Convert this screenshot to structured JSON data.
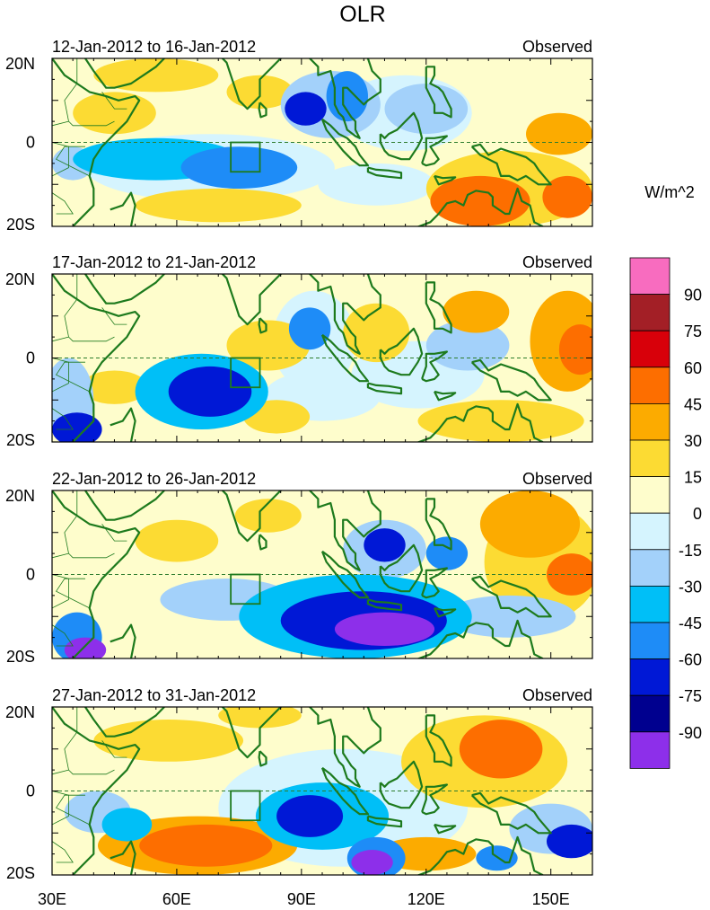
{
  "chart_data": {
    "type": "heatmap",
    "title": "OLR",
    "units": "W/m^2",
    "xlim": [
      30,
      160
    ],
    "ylim": [
      -20,
      20
    ],
    "x_ticks": [
      {
        "value": 30,
        "label": "30E"
      },
      {
        "value": 60,
        "label": "60E"
      },
      {
        "value": 90,
        "label": "90E"
      },
      {
        "value": 120,
        "label": "120E"
      },
      {
        "value": 150,
        "label": "150E"
      }
    ],
    "y_ticks": [
      {
        "value": 20,
        "label": "20N"
      },
      {
        "value": 0,
        "label": "0"
      },
      {
        "value": -20,
        "label": "20S"
      }
    ],
    "region_box": {
      "lon": [
        73,
        80
      ],
      "lat": [
        -7,
        0
      ]
    },
    "colorbar": {
      "labels": [
        "90",
        "75",
        "60",
        "45",
        "30",
        "15",
        "0",
        "-15",
        "-30",
        "-45",
        "-60",
        "-75",
        "-90"
      ],
      "colors": [
        "#f86cbf",
        "#a31f26",
        "#d8000a",
        "#fd6e00",
        "#fcab00",
        "#fcdb33",
        "#fefdcc",
        "#d5f4fe",
        "#a3d1fa",
        "#00bff7",
        "#1e8cf7",
        "#0018d6",
        "#00008f",
        "#8d2fea"
      ]
    },
    "panels": [
      {
        "period": "12-Jan-2012 to 16-Jan-2012",
        "label": "Observed",
        "anomalies": [
          {
            "lon": 91,
            "lat": 8,
            "rx": 5,
            "ry": 4,
            "value": -75
          },
          {
            "lon": 101,
            "lat": 11,
            "rx": 5,
            "ry": 6,
            "value": -60
          },
          {
            "lon": 97,
            "lat": 9,
            "rx": 12,
            "ry": 8,
            "value": -30
          },
          {
            "lon": 55,
            "lat": -4,
            "rx": 20,
            "ry": 5,
            "value": -45
          },
          {
            "lon": 75,
            "lat": -6,
            "rx": 14,
            "ry": 5,
            "value": -60
          },
          {
            "lon": 68,
            "lat": -6,
            "rx": 30,
            "ry": 8,
            "value": -15
          },
          {
            "lon": 35,
            "lat": -5,
            "rx": 5,
            "ry": 4,
            "value": -30
          },
          {
            "lon": 120,
            "lat": 8,
            "rx": 10,
            "ry": 6,
            "value": -30
          },
          {
            "lon": 115,
            "lat": 7,
            "rx": 16,
            "ry": 9,
            "value": -15
          },
          {
            "lon": 108,
            "lat": -10,
            "rx": 14,
            "ry": 5,
            "value": -15
          },
          {
            "lon": 133,
            "lat": -14,
            "rx": 12,
            "ry": 6,
            "value": 45
          },
          {
            "lon": 154,
            "lat": -13,
            "rx": 6,
            "ry": 5,
            "value": 45
          },
          {
            "lon": 140,
            "lat": -11,
            "rx": 20,
            "ry": 9,
            "value": 15
          },
          {
            "lon": 152,
            "lat": 2,
            "rx": 8,
            "ry": 5,
            "value": 30
          },
          {
            "lon": 45,
            "lat": 7,
            "rx": 10,
            "ry": 5,
            "value": 15
          },
          {
            "lon": 80,
            "lat": 12,
            "rx": 8,
            "ry": 4,
            "value": 15
          },
          {
            "lon": 55,
            "lat": 16,
            "rx": 15,
            "ry": 4,
            "value": 15
          },
          {
            "lon": 70,
            "lat": -15,
            "rx": 20,
            "ry": 4,
            "value": 15
          }
        ]
      },
      {
        "period": "17-Jan-2012 to 21-Jan-2012",
        "label": "Observed",
        "anomalies": [
          {
            "lon": 68,
            "lat": -8,
            "rx": 10,
            "ry": 6,
            "value": -75
          },
          {
            "lon": 66,
            "lat": -8,
            "rx": 16,
            "ry": 9,
            "value": -45
          },
          {
            "lon": 36,
            "lat": -17,
            "rx": 6,
            "ry": 4,
            "value": -75
          },
          {
            "lon": 34,
            "lat": -10,
            "rx": 6,
            "ry": 10,
            "value": -30
          },
          {
            "lon": 92,
            "lat": 7,
            "rx": 5,
            "ry": 5,
            "value": -60
          },
          {
            "lon": 93,
            "lat": 4,
            "rx": 10,
            "ry": 12,
            "value": -15
          },
          {
            "lon": 130,
            "lat": 3,
            "rx": 10,
            "ry": 6,
            "value": -30
          },
          {
            "lon": 118,
            "lat": -4,
            "rx": 16,
            "ry": 8,
            "value": -15
          },
          {
            "lon": 95,
            "lat": -9,
            "rx": 14,
            "ry": 6,
            "value": -15
          },
          {
            "lon": 157,
            "lat": 2,
            "rx": 5,
            "ry": 6,
            "value": 45
          },
          {
            "lon": 154,
            "lat": 4,
            "rx": 9,
            "ry": 12,
            "value": 30
          },
          {
            "lon": 82,
            "lat": 3,
            "rx": 10,
            "ry": 6,
            "value": 15
          },
          {
            "lon": 108,
            "lat": 6,
            "rx": 8,
            "ry": 7,
            "value": 15
          },
          {
            "lon": 132,
            "lat": 11,
            "rx": 8,
            "ry": 5,
            "value": 30
          },
          {
            "lon": 138,
            "lat": -15,
            "rx": 20,
            "ry": 5,
            "value": 15
          },
          {
            "lon": 45,
            "lat": -7,
            "rx": 8,
            "ry": 4,
            "value": 15
          },
          {
            "lon": 84,
            "lat": -14,
            "rx": 8,
            "ry": 4,
            "value": 15
          }
        ]
      },
      {
        "period": "22-Jan-2012 to 26-Jan-2012",
        "label": "Observed",
        "anomalies": [
          {
            "lon": 110,
            "lat": -13,
            "rx": 12,
            "ry": 4,
            "value": -90
          },
          {
            "lon": 105,
            "lat": -11,
            "rx": 20,
            "ry": 7,
            "value": -75
          },
          {
            "lon": 103,
            "lat": -10,
            "rx": 28,
            "ry": 10,
            "value": -45
          },
          {
            "lon": 38,
            "lat": -18,
            "rx": 5,
            "ry": 3,
            "value": -90
          },
          {
            "lon": 36,
            "lat": -15,
            "rx": 6,
            "ry": 6,
            "value": -60
          },
          {
            "lon": 72,
            "lat": -6,
            "rx": 16,
            "ry": 5,
            "value": -30
          },
          {
            "lon": 110,
            "lat": 7,
            "rx": 5,
            "ry": 4,
            "value": -75
          },
          {
            "lon": 110,
            "lat": 6,
            "rx": 10,
            "ry": 7,
            "value": -30
          },
          {
            "lon": 125,
            "lat": 5,
            "rx": 5,
            "ry": 4,
            "value": -60
          },
          {
            "lon": 140,
            "lat": -10,
            "rx": 16,
            "ry": 5,
            "value": -30
          },
          {
            "lon": 145,
            "lat": 12,
            "rx": 12,
            "ry": 8,
            "value": 30
          },
          {
            "lon": 155,
            "lat": 0,
            "rx": 6,
            "ry": 5,
            "value": 45
          },
          {
            "lon": 148,
            "lat": 3,
            "rx": 14,
            "ry": 14,
            "value": 15
          },
          {
            "lon": 60,
            "lat": 8,
            "rx": 10,
            "ry": 5,
            "value": 15
          },
          {
            "lon": 82,
            "lat": 14,
            "rx": 8,
            "ry": 4,
            "value": 15
          }
        ]
      },
      {
        "period": "27-Jan-2012 to 31-Jan-2012",
        "label": "Observed",
        "anomalies": [
          {
            "lon": 107,
            "lat": -17,
            "rx": 5,
            "ry": 3,
            "value": -90
          },
          {
            "lon": 108,
            "lat": -16,
            "rx": 7,
            "ry": 5,
            "value": -60
          },
          {
            "lon": 92,
            "lat": -6,
            "rx": 8,
            "ry": 5,
            "value": -75
          },
          {
            "lon": 95,
            "lat": -6,
            "rx": 16,
            "ry": 8,
            "value": -45
          },
          {
            "lon": 100,
            "lat": -4,
            "rx": 30,
            "ry": 14,
            "value": -15
          },
          {
            "lon": 155,
            "lat": -12,
            "rx": 6,
            "ry": 4,
            "value": -75
          },
          {
            "lon": 150,
            "lat": -9,
            "rx": 10,
            "ry": 6,
            "value": -30
          },
          {
            "lon": 137,
            "lat": -16,
            "rx": 5,
            "ry": 3,
            "value": -60
          },
          {
            "lon": 41,
            "lat": -5,
            "rx": 8,
            "ry": 5,
            "value": -30
          },
          {
            "lon": 48,
            "lat": -8,
            "rx": 6,
            "ry": 4,
            "value": -45
          },
          {
            "lon": 67,
            "lat": -13,
            "rx": 16,
            "ry": 5,
            "value": 45
          },
          {
            "lon": 65,
            "lat": -13,
            "rx": 24,
            "ry": 7,
            "value": 30
          },
          {
            "lon": 138,
            "lat": 10,
            "rx": 10,
            "ry": 7,
            "value": 45
          },
          {
            "lon": 134,
            "lat": 7,
            "rx": 20,
            "ry": 11,
            "value": 15
          },
          {
            "lon": 120,
            "lat": -15,
            "rx": 12,
            "ry": 4,
            "value": 30
          },
          {
            "lon": 58,
            "lat": 12,
            "rx": 18,
            "ry": 5,
            "value": 15
          },
          {
            "lon": 80,
            "lat": 18,
            "rx": 10,
            "ry": 3,
            "value": 15
          }
        ]
      }
    ]
  }
}
